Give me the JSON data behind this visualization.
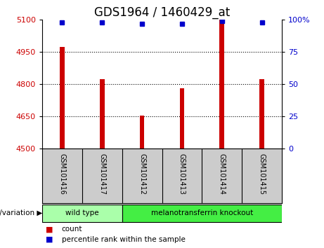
{
  "title": "GDS1964 / 1460429_at",
  "samples": [
    "GSM101416",
    "GSM101417",
    "GSM101412",
    "GSM101413",
    "GSM101414",
    "GSM101415"
  ],
  "bar_values": [
    4975,
    4825,
    4655,
    4780,
    5100,
    4825
  ],
  "percentile_values": [
    98,
    98,
    97,
    97,
    99,
    98
  ],
  "bar_color": "#cc0000",
  "percentile_color": "#0000cc",
  "y_min": 4500,
  "y_max": 5100,
  "y_ticks": [
    4500,
    4650,
    4800,
    4950,
    5100
  ],
  "y_right_ticks": [
    0,
    25,
    50,
    75,
    100
  ],
  "y_right_labels": [
    "0",
    "25",
    "50",
    "75",
    "100%"
  ],
  "dotted_lines": [
    4650,
    4800,
    4950
  ],
  "groups": [
    {
      "label": "wild type",
      "indices": [
        0,
        1
      ],
      "color": "#aaffaa"
    },
    {
      "label": "melanotransferrin knockout",
      "indices": [
        2,
        3,
        4,
        5
      ],
      "color": "#44ee44"
    }
  ],
  "group_label": "genotype/variation",
  "legend_count_label": "count",
  "legend_percentile_label": "percentile rank within the sample",
  "bar_width": 0.12,
  "plot_bg_color": "#ffffff",
  "label_area_color": "#cccccc",
  "title_fontsize": 12,
  "tick_fontsize": 8,
  "label_fontsize": 8
}
